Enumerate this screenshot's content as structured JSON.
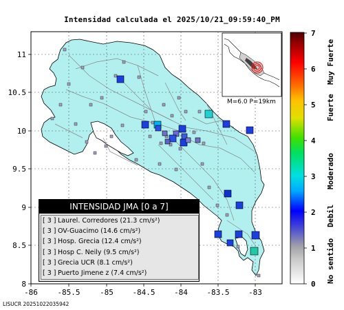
{
  "title": "Intensidad calculada el 2025/10/21_09:59:40_PM",
  "footer": "LISUCR 20251022035942",
  "inset_label": "M=6.0 P=19km",
  "x_ticks": [
    "-86",
    "-85.5",
    "-85",
    "-84.5",
    "-84",
    "-83.5",
    "-83"
  ],
  "y_ticks": [
    "11",
    "10.5",
    "10",
    "9.5",
    "9",
    "8.5",
    "8"
  ],
  "colorbar": {
    "ticks": [
      "0",
      "1",
      "2",
      "3",
      "4",
      "5",
      "6",
      "7"
    ],
    "labels": [
      "No sentido",
      "Debil",
      "Moderado",
      "Fuerte",
      "Muy Fuerte"
    ]
  },
  "legend": {
    "title": "INTENSIDAD JMA [0 a 7]",
    "items": [
      {
        "level": "[ 3 ]",
        "station": "Laurel. Corredores (21.3 cm/s²)"
      },
      {
        "level": "[ 3 ]",
        "station": "OV-Guacimo (14.6 cm/s²)"
      },
      {
        "level": "[ 3 ]",
        "station": "Hosp. Grecia (12.4 cm/s²)"
      },
      {
        "level": "[ 3 ]",
        "station": "Hosp C. Neily (9.5 cm/s²)"
      },
      {
        "level": "[ 3 ]",
        "station": "Grecia UCR (8.1 cm/s²)"
      },
      {
        "level": "[ 3 ]",
        "station": "Puerto Jimene z (7.4 cm/s²)"
      }
    ]
  },
  "colors": {
    "land": "#b2f0f0",
    "sea": "#ffffff",
    "epicenter": "#e8231e"
  }
}
